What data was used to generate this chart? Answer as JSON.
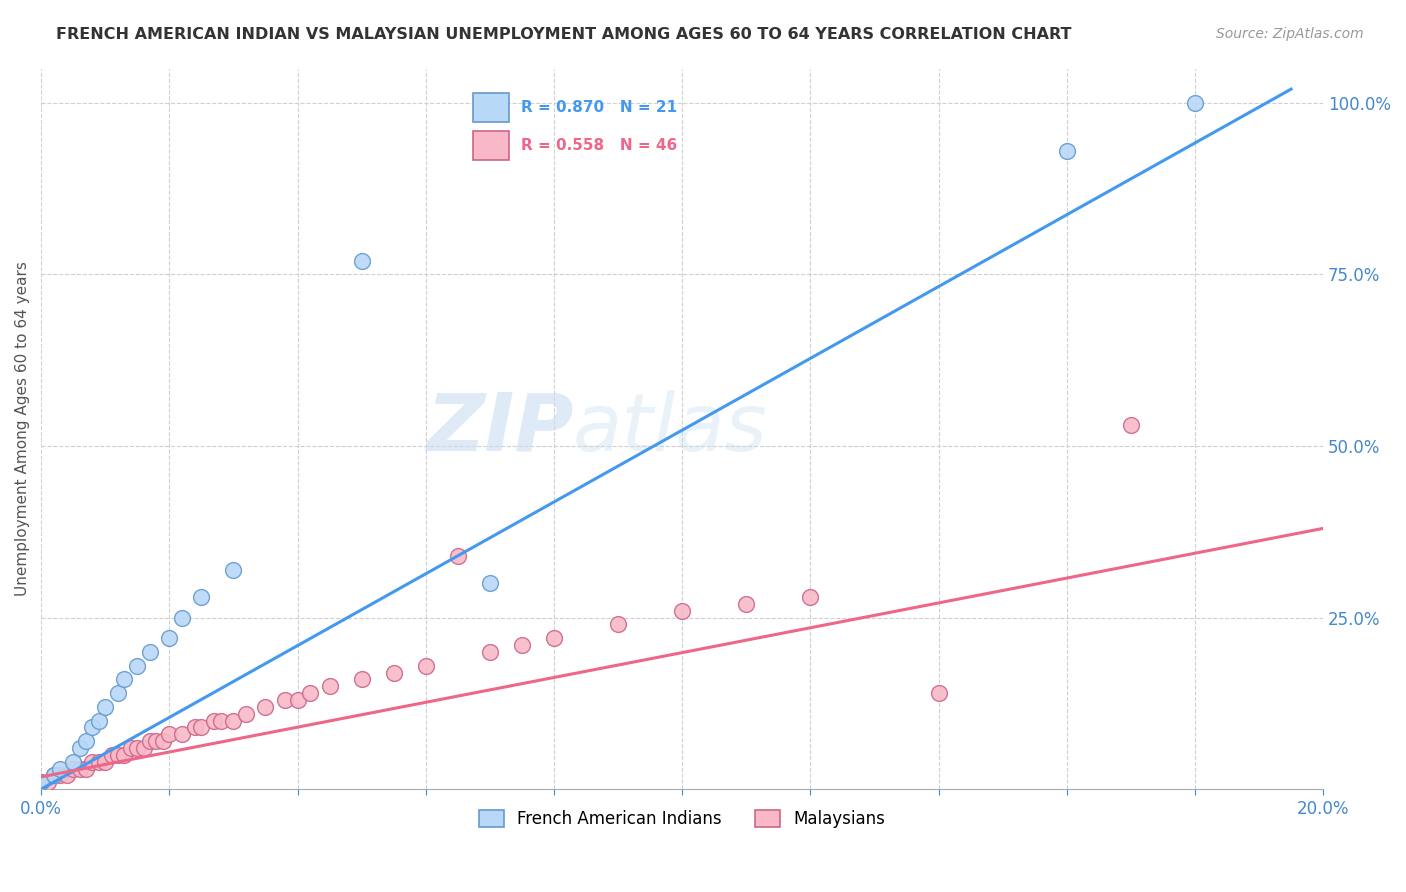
{
  "title": "FRENCH AMERICAN INDIAN VS MALAYSIAN UNEMPLOYMENT AMONG AGES 60 TO 64 YEARS CORRELATION CHART",
  "source": "Source: ZipAtlas.com",
  "ylabel": "Unemployment Among Ages 60 to 64 years",
  "legend_r_french": "R = 0.870   N = 21",
  "legend_r_malay": "R = 0.558   N = 46",
  "legend_label_french": "French American Indians",
  "legend_label_malay": "Malaysians",
  "french_scatter_x": [
    0.0,
    0.002,
    0.003,
    0.005,
    0.006,
    0.007,
    0.008,
    0.009,
    0.01,
    0.012,
    0.013,
    0.015,
    0.017,
    0.02,
    0.022,
    0.025,
    0.03,
    0.05,
    0.07,
    0.16,
    0.18
  ],
  "french_scatter_y": [
    0.01,
    0.02,
    0.03,
    0.04,
    0.06,
    0.07,
    0.09,
    0.1,
    0.12,
    0.14,
    0.16,
    0.18,
    0.2,
    0.22,
    0.25,
    0.28,
    0.32,
    0.77,
    0.3,
    0.93,
    1.0
  ],
  "malaysian_scatter_x": [
    0.0,
    0.001,
    0.002,
    0.003,
    0.004,
    0.005,
    0.006,
    0.007,
    0.008,
    0.009,
    0.01,
    0.011,
    0.012,
    0.013,
    0.014,
    0.015,
    0.016,
    0.017,
    0.018,
    0.019,
    0.02,
    0.022,
    0.024,
    0.025,
    0.027,
    0.028,
    0.03,
    0.032,
    0.035,
    0.038,
    0.04,
    0.042,
    0.045,
    0.05,
    0.055,
    0.06,
    0.065,
    0.07,
    0.075,
    0.08,
    0.09,
    0.1,
    0.11,
    0.12,
    0.14,
    0.17
  ],
  "malaysian_scatter_y": [
    0.01,
    0.01,
    0.02,
    0.02,
    0.02,
    0.03,
    0.03,
    0.03,
    0.04,
    0.04,
    0.04,
    0.05,
    0.05,
    0.05,
    0.06,
    0.06,
    0.06,
    0.07,
    0.07,
    0.07,
    0.08,
    0.08,
    0.09,
    0.09,
    0.1,
    0.1,
    0.1,
    0.11,
    0.12,
    0.13,
    0.13,
    0.14,
    0.15,
    0.16,
    0.17,
    0.18,
    0.34,
    0.2,
    0.21,
    0.22,
    0.24,
    0.26,
    0.27,
    0.28,
    0.14,
    0.53
  ],
  "french_line_x": [
    0.0,
    0.195
  ],
  "french_line_y": [
    0.0,
    1.02
  ],
  "malaysian_line_x": [
    0.0,
    0.2
  ],
  "malaysian_line_y": [
    0.018,
    0.38
  ],
  "french_line_color": "#4499ee",
  "malaysian_line_color": "#ee6688",
  "french_dot_fill": "#b8d8f8",
  "french_dot_edge": "#6699cc",
  "malaysian_dot_fill": "#f8b8c8",
  "malaysian_dot_edge": "#cc6688",
  "watermark_zip": "ZIP",
  "watermark_atlas": "atlas",
  "background_color": "#ffffff",
  "xlim": [
    0.0,
    0.2
  ],
  "ylim": [
    0.0,
    1.05
  ],
  "x_ticks": [
    0.0,
    0.02,
    0.04,
    0.06,
    0.08,
    0.1,
    0.12,
    0.14,
    0.16,
    0.18,
    0.2
  ],
  "y_ticks": [
    0.25,
    0.5,
    0.75,
    1.0
  ],
  "y_tick_labels": [
    "25.0%",
    "50.0%",
    "75.0%",
    "100.0%"
  ]
}
